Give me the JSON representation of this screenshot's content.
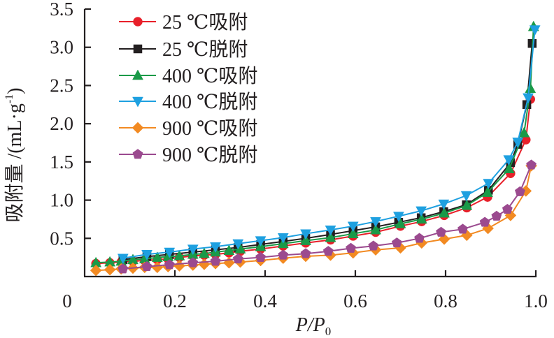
{
  "chart_data": {
    "type": "line",
    "title": "",
    "xlabel": "P/P0",
    "xlabel_parts": {
      "main": "P/P",
      "sub": "0"
    },
    "ylabel": "吸附量 /(mL·g⁻¹)",
    "ylabel_parts": {
      "main": "吸附量 /(mL·g",
      "sup": "-1",
      "close": ")"
    },
    "xlim": [
      0,
      1.0
    ],
    "ylim": [
      0,
      3.5
    ],
    "x_ticks": [
      0.2,
      0.4,
      0.6,
      0.8,
      1.0
    ],
    "x_tick_labels": [
      "0.2",
      "0.4",
      "0.6",
      "0.8",
      "1.0"
    ],
    "y_ticks": [
      0.5,
      1.0,
      1.5,
      2.0,
      2.5,
      3.0,
      3.5
    ],
    "y_tick_labels": [
      "0.5",
      "1.0",
      "1.5",
      "2.0",
      "2.5",
      "3.0",
      "3.5"
    ],
    "origin_label": "0",
    "grid": false,
    "legend_position": "top-left",
    "series": [
      {
        "name": "25 ℃吸附",
        "color": "#e8202a",
        "marker": "circle",
        "x": [
          0.025,
          0.056,
          0.081,
          0.107,
          0.133,
          0.161,
          0.185,
          0.21,
          0.24,
          0.265,
          0.29,
          0.32,
          0.345,
          0.39,
          0.44,
          0.49,
          0.545,
          0.595,
          0.645,
          0.7,
          0.747,
          0.797,
          0.847,
          0.893,
          0.944,
          0.978,
          0.988
        ],
        "y": [
          0.17,
          0.18,
          0.19,
          0.2,
          0.21,
          0.22,
          0.23,
          0.25,
          0.27,
          0.28,
          0.29,
          0.31,
          0.33,
          0.36,
          0.4,
          0.44,
          0.48,
          0.53,
          0.58,
          0.66,
          0.72,
          0.8,
          0.9,
          1.04,
          1.35,
          1.79,
          2.32
        ]
      },
      {
        "name": "25 ℃脱附",
        "color": "#231f20",
        "marker": "square",
        "x": [
          0.085,
          0.138,
          0.188,
          0.24,
          0.29,
          0.34,
          0.39,
          0.44,
          0.49,
          0.545,
          0.595,
          0.645,
          0.696,
          0.746,
          0.796,
          0.846,
          0.895,
          0.944,
          0.96,
          0.98,
          0.992
        ],
        "y": [
          0.22,
          0.26,
          0.29,
          0.32,
          0.35,
          0.38,
          0.42,
          0.46,
          0.5,
          0.55,
          0.6,
          0.65,
          0.71,
          0.77,
          0.85,
          0.94,
          1.13,
          1.49,
          1.73,
          2.25,
          3.05
        ]
      },
      {
        "name": "400 ℃吸附",
        "color": "#1a9a48",
        "marker": "triangle-up",
        "x": [
          0.025,
          0.056,
          0.081,
          0.107,
          0.133,
          0.161,
          0.185,
          0.21,
          0.24,
          0.265,
          0.29,
          0.32,
          0.345,
          0.39,
          0.44,
          0.49,
          0.545,
          0.595,
          0.645,
          0.7,
          0.747,
          0.797,
          0.847,
          0.893,
          0.941,
          0.974,
          0.988,
          0.995
        ],
        "y": [
          0.18,
          0.19,
          0.2,
          0.22,
          0.23,
          0.25,
          0.26,
          0.27,
          0.29,
          0.3,
          0.32,
          0.34,
          0.36,
          0.39,
          0.43,
          0.47,
          0.51,
          0.56,
          0.61,
          0.69,
          0.75,
          0.83,
          0.93,
          1.1,
          1.41,
          1.88,
          2.46,
          3.27
        ]
      },
      {
        "name": "400 ℃脱附",
        "color": "#1ea0e0",
        "marker": "triangle-down",
        "x": [
          0.085,
          0.138,
          0.188,
          0.24,
          0.29,
          0.34,
          0.39,
          0.44,
          0.49,
          0.545,
          0.595,
          0.645,
          0.696,
          0.746,
          0.796,
          0.846,
          0.895,
          0.94,
          0.96,
          0.983,
          0.998
        ],
        "y": [
          0.24,
          0.29,
          0.32,
          0.36,
          0.39,
          0.43,
          0.47,
          0.51,
          0.56,
          0.61,
          0.66,
          0.72,
          0.79,
          0.86,
          0.95,
          1.06,
          1.22,
          1.53,
          1.76,
          2.34,
          3.23
        ]
      },
      {
        "name": "900 ℃吸附",
        "color": "#f28a22",
        "marker": "diamond",
        "x": [
          0.025,
          0.056,
          0.081,
          0.107,
          0.133,
          0.161,
          0.185,
          0.21,
          0.24,
          0.265,
          0.29,
          0.32,
          0.345,
          0.39,
          0.44,
          0.49,
          0.545,
          0.595,
          0.645,
          0.7,
          0.747,
          0.797,
          0.847,
          0.894,
          0.944,
          0.978,
          0.99
        ],
        "y": [
          0.08,
          0.09,
          0.1,
          0.11,
          0.12,
          0.12,
          0.13,
          0.14,
          0.15,
          0.16,
          0.17,
          0.18,
          0.19,
          0.21,
          0.24,
          0.265,
          0.28,
          0.31,
          0.35,
          0.375,
          0.44,
          0.49,
          0.54,
          0.63,
          0.8,
          1.12,
          1.45
        ]
      },
      {
        "name": "900 ℃脱附",
        "color": "#9b4a8f",
        "marker": "pentagon",
        "x": [
          0.085,
          0.138,
          0.188,
          0.24,
          0.29,
          0.34,
          0.39,
          0.44,
          0.49,
          0.54,
          0.59,
          0.64,
          0.692,
          0.742,
          0.79,
          0.838,
          0.887,
          0.913,
          0.937,
          0.965,
          0.99
        ],
        "y": [
          0.1,
          0.13,
          0.155,
          0.18,
          0.2,
          0.23,
          0.25,
          0.28,
          0.3,
          0.33,
          0.37,
          0.4,
          0.44,
          0.5,
          0.58,
          0.62,
          0.71,
          0.79,
          0.88,
          1.11,
          1.46
        ]
      }
    ]
  }
}
